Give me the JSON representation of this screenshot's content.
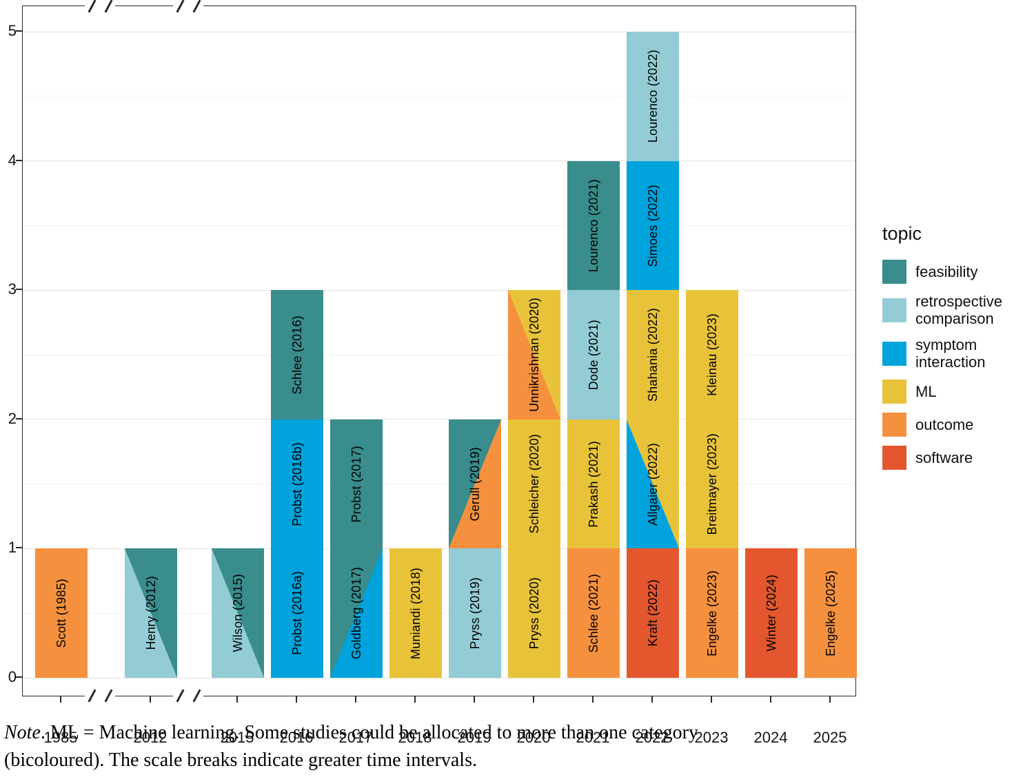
{
  "note": {
    "prefix": "Note",
    "line1_rest": ". ML = Machine learning. Some studies could be allocated to more than one category",
    "line2": "(bicoloured). The scale breaks indicate greater time intervals."
  },
  "chart_data": {
    "type": "bar",
    "stacked": true,
    "title": "",
    "xlabel": "",
    "ylabel": "",
    "ylim": [
      0,
      5
    ],
    "yticks": [
      0,
      1,
      2,
      3,
      4,
      5
    ],
    "grid": true,
    "legend_position": "right",
    "categories": [
      "1985",
      "2012",
      "2015",
      "2016",
      "2017",
      "2018",
      "2019",
      "2020",
      "2021",
      "2022",
      "2023",
      "2024",
      "2025"
    ],
    "scale_breaks": [
      [
        "1985",
        "2012"
      ],
      [
        "2012",
        "2015"
      ]
    ],
    "legend": {
      "title": "topic",
      "entries": [
        {
          "label": "feasibility",
          "color": "#398d8c"
        },
        {
          "label": "retrospective comparison",
          "color": "#93ccd4"
        },
        {
          "label": "symptom interaction",
          "color": "#00a3dc"
        },
        {
          "label": "ML",
          "color": "#e8c33a"
        },
        {
          "label": "outcome",
          "color": "#f5913e"
        },
        {
          "label": "software",
          "color": "#e4572e"
        }
      ]
    },
    "topic_colors": {
      "feasibility": "#398d8c",
      "retrospective comparison": "#93ccd4",
      "symptom interaction": "#00a3dc",
      "ML": "#e8c33a",
      "outcome": "#f5913e",
      "software": "#e4572e"
    },
    "bars": [
      {
        "year": "1985",
        "segments": [
          {
            "label": "Scott (1985)",
            "topics": [
              "outcome"
            ]
          }
        ]
      },
      {
        "year": "2012",
        "segments": [
          {
            "label": "Henry (2012)",
            "topics": [
              "retrospective comparison",
              "feasibility"
            ],
            "split": "bl-tr"
          }
        ]
      },
      {
        "year": "2015",
        "segments": [
          {
            "label": "Wilson (2015)",
            "topics": [
              "retrospective comparison",
              "feasibility"
            ],
            "split": "bl-tr"
          }
        ]
      },
      {
        "year": "2016",
        "segments": [
          {
            "label": "Probst (2016a)",
            "topics": [
              "symptom interaction"
            ]
          },
          {
            "label": "Probst (2016b)",
            "topics": [
              "symptom interaction"
            ]
          },
          {
            "label": "Schlee (2016)",
            "topics": [
              "feasibility"
            ]
          }
        ]
      },
      {
        "year": "2017",
        "segments": [
          {
            "label": "Goldberg (2017)",
            "topics": [
              "feasibility",
              "symptom interaction"
            ],
            "split": "tl-br"
          },
          {
            "label": "Probst (2017)",
            "topics": [
              "feasibility"
            ]
          }
        ]
      },
      {
        "year": "2018",
        "segments": [
          {
            "label": "Muniandi (2018)",
            "topics": [
              "ML"
            ]
          }
        ]
      },
      {
        "year": "2019",
        "segments": [
          {
            "label": "Pryss (2019)",
            "topics": [
              "retrospective comparison"
            ]
          },
          {
            "label": "Gerull (2019)",
            "topics": [
              "feasibility",
              "outcome"
            ],
            "split": "tl-br"
          }
        ]
      },
      {
        "year": "2020",
        "segments": [
          {
            "label": "Pryss (2020)",
            "topics": [
              "ML"
            ]
          },
          {
            "label": "Schleicher (2020)",
            "topics": [
              "ML"
            ]
          },
          {
            "label": "Unnikrishnan (2020)",
            "topics": [
              "outcome",
              "ML"
            ],
            "split": "bl-tr"
          }
        ]
      },
      {
        "year": "2021",
        "segments": [
          {
            "label": "Schlee (2021)",
            "topics": [
              "outcome"
            ]
          },
          {
            "label": "Prakash (2021)",
            "topics": [
              "ML"
            ]
          },
          {
            "label": "Dode (2021)",
            "topics": [
              "retrospective comparison"
            ]
          },
          {
            "label": "Lourenco (2021)",
            "topics": [
              "feasibility"
            ]
          }
        ]
      },
      {
        "year": "2022",
        "segments": [
          {
            "label": "Kraft (2022)",
            "topics": [
              "software"
            ]
          },
          {
            "label": "Allgaier (2022)",
            "topics": [
              "symptom interaction",
              "ML"
            ],
            "split": "bl-tr"
          },
          {
            "label": "Shahania (2022)",
            "topics": [
              "ML"
            ]
          },
          {
            "label": "Simoes (2022)",
            "topics": [
              "symptom interaction"
            ]
          },
          {
            "label": "Lourenco (2022)",
            "topics": [
              "retrospective comparison"
            ]
          }
        ]
      },
      {
        "year": "2023",
        "segments": [
          {
            "label": "Engelke (2023)",
            "topics": [
              "outcome"
            ]
          },
          {
            "label": "Breitmayer (2023)",
            "topics": [
              "ML"
            ]
          },
          {
            "label": "Kleinau (2023)",
            "topics": [
              "ML"
            ]
          }
        ]
      },
      {
        "year": "2024",
        "segments": [
          {
            "label": "Winter (2024)",
            "topics": [
              "software"
            ]
          }
        ]
      },
      {
        "year": "2025",
        "segments": [
          {
            "label": "Engelke (2025)",
            "topics": [
              "outcome"
            ]
          }
        ]
      }
    ]
  }
}
